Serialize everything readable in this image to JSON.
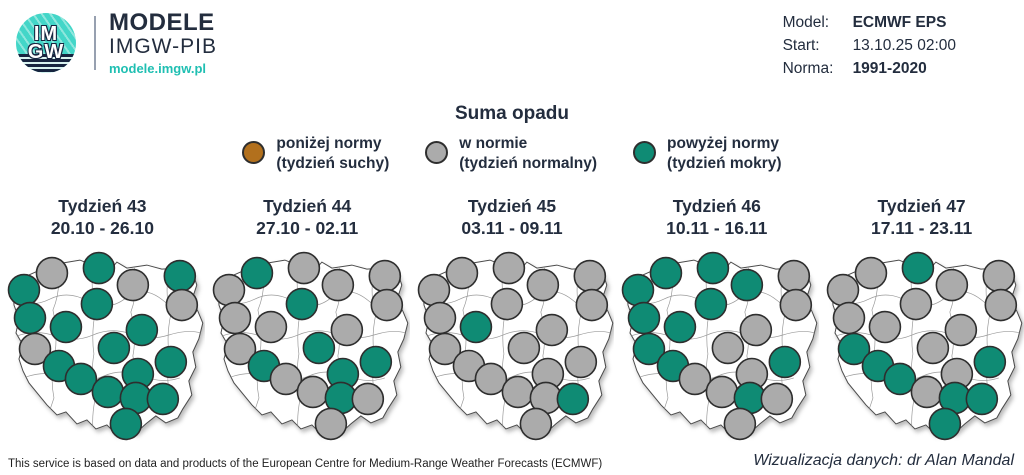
{
  "header": {
    "logo": {
      "imgw_line1": "IM",
      "imgw_line2": "GW",
      "brand_title": "MODELE",
      "brand_subtitle": "IMGW-PIB",
      "brand_url": "modele.imgw.pl"
    },
    "model_info": {
      "rows": [
        {
          "label": "Model:",
          "value": "ECMWF EPS"
        },
        {
          "label": "Start:",
          "value": "13.10.25 02:00"
        },
        {
          "label": "Norma:",
          "value": "1991-2020"
        }
      ]
    }
  },
  "chart_data": {
    "type": "scatter",
    "subtype": "small-multiples categorical dot maps of Poland, weekly precipitation vs norm",
    "title": "Suma opadu",
    "legend": {
      "items": [
        {
          "key": "below",
          "line1": "poniżej normy",
          "line2": "(tydzień suchy)",
          "color": "#b2701d"
        },
        {
          "key": "normal",
          "line1": "w normie",
          "line2": "(tydzień normalny)",
          "color": "#ababab"
        },
        {
          "key": "above",
          "line1": "powyżej normy",
          "line2": "(tydzień mokry)",
          "color": "#0f8b74"
        }
      ]
    },
    "colors": {
      "below": "#b2701d",
      "normal": "#ababab",
      "above": "#0f8b74"
    },
    "dot_positions": [
      [
        52,
        25
      ],
      [
        99,
        20
      ],
      [
        133,
        37
      ],
      [
        180,
        28
      ],
      [
        182,
        57
      ],
      [
        24,
        42
      ],
      [
        97,
        56
      ],
      [
        30,
        70
      ],
      [
        66,
        79
      ],
      [
        142,
        82
      ],
      [
        35,
        101
      ],
      [
        114,
        100
      ],
      [
        59,
        118
      ],
      [
        171,
        114
      ],
      [
        138,
        126
      ],
      [
        81,
        131
      ],
      [
        108,
        144
      ],
      [
        136,
        150
      ],
      [
        163,
        151
      ],
      [
        126,
        176
      ]
    ],
    "weeks": [
      {
        "label": "Tydzień 43",
        "dates": "20.10 - 26.10",
        "dots": [
          "normal",
          "above",
          "normal",
          "above",
          "normal",
          "above",
          "above",
          "above",
          "above",
          "above",
          "normal",
          "above",
          "above",
          "above",
          "above",
          "above",
          "above",
          "above",
          "above",
          "above"
        ]
      },
      {
        "label": "Tydzień 44",
        "dates": "27.10 - 02.11",
        "dots": [
          "above",
          "normal",
          "normal",
          "normal",
          "normal",
          "normal",
          "above",
          "normal",
          "normal",
          "normal",
          "normal",
          "above",
          "above",
          "above",
          "above",
          "normal",
          "normal",
          "above",
          "normal",
          "normal"
        ]
      },
      {
        "label": "Tydzień 45",
        "dates": "03.11 - 09.11",
        "dots": [
          "normal",
          "normal",
          "normal",
          "normal",
          "normal",
          "normal",
          "normal",
          "normal",
          "above",
          "normal",
          "normal",
          "normal",
          "normal",
          "normal",
          "normal",
          "normal",
          "normal",
          "normal",
          "above",
          "normal"
        ]
      },
      {
        "label": "Tydzień 46",
        "dates": "10.11 - 16.11",
        "dots": [
          "above",
          "above",
          "above",
          "normal",
          "normal",
          "above",
          "above",
          "above",
          "above",
          "normal",
          "above",
          "normal",
          "above",
          "above",
          "normal",
          "normal",
          "normal",
          "above",
          "normal",
          "normal"
        ]
      },
      {
        "label": "Tydzień 47",
        "dates": "17.11 - 23.11",
        "dots": [
          "normal",
          "above",
          "normal",
          "normal",
          "normal",
          "normal",
          "normal",
          "normal",
          "normal",
          "normal",
          "above",
          "normal",
          "above",
          "above",
          "normal",
          "above",
          "normal",
          "above",
          "above",
          "above"
        ]
      }
    ]
  },
  "footer": {
    "left": "This service is based on data and products of the European Centre for Medium-Range Weather Forecasts (ECMWF)",
    "right": "Wizualizacja danych: dr Alan Mandal"
  }
}
